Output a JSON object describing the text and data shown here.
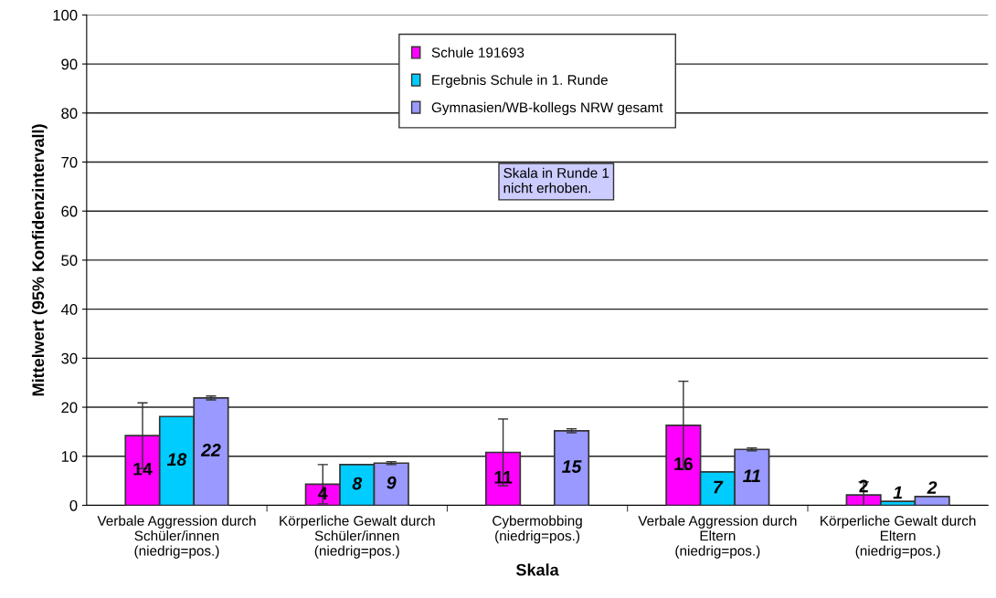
{
  "chart_data": {
    "type": "bar",
    "xlabel": "Skala",
    "ylabel": "Mittelwert (95% Konfidenzintervall)",
    "categories": [
      "Verbale Aggression durch\nSchüler/innen\n(niedrig=pos.)",
      "Körperliche Gewalt durch\nSchüler/innen\n(niedrig=pos.)",
      "Cybermobbing\n(niedrig=pos.)",
      "Verbale Aggression durch\nEltern\n(niedrig=pos.)",
      "Körperliche Gewalt durch\nEltern\n(niedrig=pos.)"
    ],
    "series": [
      {
        "name": "Schule 191693",
        "color": "#ff00ff",
        "values": [
          14.2,
          4.3,
          10.8,
          16.3,
          2.1
        ],
        "errors": [
          6.7,
          4.0,
          6.8,
          9.0,
          2.7
        ],
        "value_labels": [
          "14",
          "4",
          "11",
          "16",
          "2"
        ]
      },
      {
        "name": "Ergebnis Schule in 1. Runde",
        "color": "#00ccff",
        "values": [
          18.1,
          8.3,
          null,
          6.8,
          0.8
        ],
        "value_labels": [
          "18",
          "8",
          null,
          "7",
          "1"
        ]
      },
      {
        "name": "Gymnasien/WB-kollegs NRW gesamt",
        "color": "#9999ff",
        "values": [
          21.9,
          8.6,
          15.2,
          11.4,
          1.8
        ],
        "errors": [
          0.4,
          0.3,
          0.4,
          0.3,
          null
        ],
        "value_labels": [
          "22",
          "9",
          "15",
          "11",
          "2"
        ]
      }
    ],
    "annotations": [
      "Skala in Runde 1\nnicht erhoben."
    ],
    "ylim": [
      0,
      100
    ],
    "yticks": [
      0,
      10,
      20,
      30,
      40,
      50,
      60,
      70,
      80,
      90,
      100
    ],
    "grid": "y",
    "legend": "top"
  }
}
